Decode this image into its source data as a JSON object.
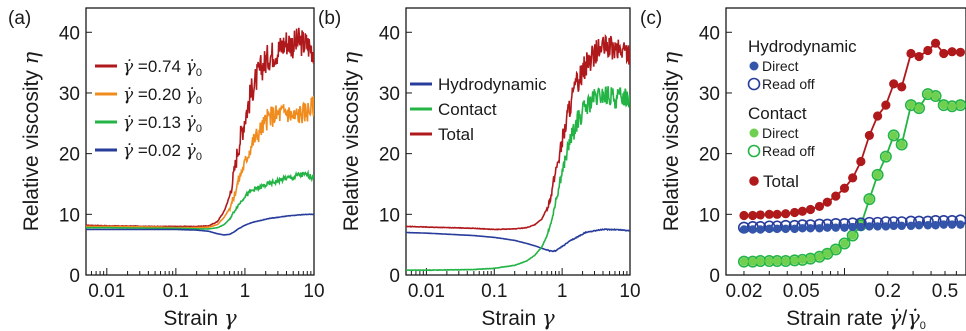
{
  "colors": {
    "red": "#b0191c",
    "orange": "#f08c1e",
    "green": "#23b445",
    "blue": "#283c9b",
    "light_green": "#6fd04f",
    "dot_blue": "#3355aa"
  },
  "chart_data": [
    {
      "type": "line",
      "panel_label": "(a)",
      "xlabel": "Strain γ",
      "ylabel": "Relative viscosity η",
      "x_scale": "log",
      "xlim": [
        0.005,
        10
      ],
      "ylim": [
        0,
        44
      ],
      "x_ticks": [
        0.01,
        0.1,
        1,
        10
      ],
      "x_tick_labels": [
        "0.01",
        "0.1",
        "1",
        "10"
      ],
      "y_ticks": [
        0,
        10,
        20,
        30,
        40
      ],
      "y_tick_labels": [
        "0",
        "10",
        "20",
        "30",
        "40"
      ],
      "legend_position": "top-left",
      "series": [
        {
          "name": "γ̇ =0.74 γ̇₀",
          "color": "#b0191c",
          "noise": 2.4,
          "x": [
            0.005,
            0.01,
            0.05,
            0.1,
            0.2,
            0.3,
            0.4,
            0.5,
            0.6,
            0.7,
            0.8,
            1.0,
            1.3,
            1.7,
            2.2,
            3,
            4,
            5,
            6,
            8,
            10
          ],
          "y": [
            8.2,
            8.1,
            8,
            8,
            8,
            8.1,
            8.8,
            10.5,
            13,
            17,
            21,
            26,
            31,
            34,
            36,
            37,
            38.5,
            38,
            38.5,
            38,
            37
          ]
        },
        {
          "name": "γ̇ =0.20 γ̇₀",
          "color": "#f08c1e",
          "noise": 1.8,
          "x": [
            0.005,
            0.01,
            0.05,
            0.1,
            0.2,
            0.3,
            0.4,
            0.5,
            0.6,
            0.7,
            0.8,
            1.0,
            1.3,
            1.7,
            2.2,
            3,
            4,
            5,
            6,
            8,
            10
          ],
          "y": [
            8,
            8,
            7.9,
            7.8,
            7.8,
            7.9,
            8.3,
            9.5,
            11,
            13,
            15.5,
            18.5,
            22,
            24,
            26,
            26.5,
            27,
            26,
            26.5,
            27,
            28
          ]
        },
        {
          "name": "γ̇ =0.13 γ̇₀",
          "color": "#23b445",
          "noise": 0.9,
          "x": [
            0.005,
            0.01,
            0.05,
            0.1,
            0.2,
            0.3,
            0.4,
            0.5,
            0.6,
            0.7,
            0.8,
            1.0,
            1.3,
            1.7,
            2.2,
            3,
            4,
            5,
            6,
            8,
            10
          ],
          "y": [
            7.8,
            7.8,
            7.7,
            7.7,
            7.6,
            7.6,
            7.8,
            8.3,
            9.2,
            10.5,
            11.5,
            13,
            14,
            14.5,
            15,
            15.5,
            16,
            16,
            16.5,
            16.5,
            16
          ]
        },
        {
          "name": "γ̇ =0.02 γ̇₀",
          "color": "#283c9b",
          "noise": 0.2,
          "x": [
            0.005,
            0.01,
            0.05,
            0.1,
            0.2,
            0.3,
            0.4,
            0.5,
            0.6,
            0.7,
            0.8,
            1.0,
            1.3,
            1.7,
            2.2,
            3,
            4,
            5,
            6,
            8,
            10
          ],
          "y": [
            7.5,
            7.5,
            7.5,
            7.5,
            7.4,
            7.2,
            6.8,
            6.6,
            6.7,
            7.1,
            7.6,
            8.2,
            8.7,
            9,
            9.3,
            9.5,
            9.7,
            9.8,
            9.9,
            10,
            10
          ]
        }
      ]
    },
    {
      "type": "line",
      "panel_label": "(b)",
      "xlabel": "Strain γ",
      "ylabel": "Relative viscosity η",
      "x_scale": "log",
      "xlim": [
        0.005,
        10
      ],
      "ylim": [
        0,
        44
      ],
      "x_ticks": [
        0.01,
        0.1,
        1,
        10
      ],
      "x_tick_labels": [
        "0.01",
        "0.1",
        "1",
        "10"
      ],
      "y_ticks": [
        0,
        10,
        20,
        30,
        40
      ],
      "y_tick_labels": [
        "0",
        "10",
        "20",
        "30",
        "40"
      ],
      "legend_position": "top-left",
      "series": [
        {
          "name": "Hydrodynamic",
          "color": "#283c9b",
          "noise": 0.6,
          "x": [
            0.005,
            0.01,
            0.05,
            0.1,
            0.2,
            0.3,
            0.4,
            0.5,
            0.6,
            0.7,
            0.8,
            1.0,
            1.3,
            1.7,
            2.2,
            3,
            4,
            5,
            6,
            8,
            10
          ],
          "y": [
            7,
            6.9,
            6.5,
            6.2,
            5.7,
            5.2,
            4.8,
            4.4,
            4.1,
            3.9,
            4,
            4.7,
            5.6,
            6.3,
            7,
            7.3,
            7.5,
            7.5,
            7.5,
            7.4,
            7.3
          ]
        },
        {
          "name": "Contact",
          "color": "#23b445",
          "noise": 1.7,
          "x": [
            0.005,
            0.01,
            0.05,
            0.1,
            0.2,
            0.3,
            0.4,
            0.5,
            0.6,
            0.7,
            0.8,
            1.0,
            1.3,
            1.7,
            2.2,
            3,
            4,
            5,
            6,
            8,
            10
          ],
          "y": [
            0.8,
            0.8,
            0.9,
            1.1,
            1.6,
            2.3,
            3.3,
            4.6,
            6.5,
            9,
            12,
            17,
            22,
            25.5,
            27.5,
            29,
            29.5,
            29.5,
            29,
            29.5,
            29
          ]
        },
        {
          "name": "Total",
          "color": "#b0191c",
          "noise": 2.0,
          "x": [
            0.005,
            0.01,
            0.05,
            0.1,
            0.2,
            0.3,
            0.4,
            0.5,
            0.6,
            0.7,
            0.8,
            1.0,
            1.3,
            1.7,
            2.2,
            3,
            4,
            5,
            6,
            8,
            10
          ],
          "y": [
            8,
            7.9,
            7.7,
            7.5,
            7.6,
            7.8,
            8.3,
            9.2,
            11,
            13.5,
            17,
            22,
            28,
            32,
            34.5,
            36.5,
            37.5,
            37.5,
            37,
            37,
            36.5
          ]
        }
      ]
    },
    {
      "type": "scatter",
      "panel_label": "(c)",
      "xlabel": "Strain rate γ̇/γ̇₀",
      "ylabel": "Relative viscosity η",
      "x_scale": "log",
      "xlim": [
        0.015,
        0.7
      ],
      "ylim": [
        0,
        44
      ],
      "x_ticks": [
        0.02,
        0.05,
        0.2,
        0.5
      ],
      "x_tick_labels": [
        "0.02",
        "0.05",
        "0.2",
        "0.5"
      ],
      "y_ticks": [
        0,
        10,
        20,
        30,
        40
      ],
      "y_tick_labels": [
        "0",
        "10",
        "20",
        "30",
        "40"
      ],
      "legend_position": "top-left",
      "legend": {
        "hydro_title": "Hydrodynamic",
        "contact_title": "Contact",
        "direct": "Direct",
        "read_off": "Read off",
        "total": "Total"
      },
      "x": [
        0.02,
        0.023,
        0.026,
        0.03,
        0.034,
        0.039,
        0.045,
        0.051,
        0.058,
        0.067,
        0.076,
        0.087,
        0.1,
        0.114,
        0.13,
        0.149,
        0.17,
        0.194,
        0.22,
        0.25,
        0.29,
        0.33,
        0.38,
        0.43,
        0.49,
        0.56,
        0.64
      ],
      "series": [
        {
          "name": "Total",
          "color": "#b0191c",
          "style": "filled-line",
          "y": [
            9.8,
            9.8,
            9.9,
            10,
            10,
            10.1,
            10.3,
            10.5,
            10.8,
            11.3,
            12,
            13,
            14.3,
            16,
            18.7,
            23,
            26.2,
            28,
            31.5,
            31,
            36.5,
            36,
            37,
            38.2,
            36.5,
            36.8,
            36.7
          ]
        },
        {
          "name": "Contact Read off",
          "color": "#23b445",
          "style": "open-line",
          "y": [
            2.2,
            2.2,
            2.3,
            2.3,
            2.3,
            2.3,
            2.4,
            2.5,
            2.7,
            3,
            3.5,
            4.2,
            5.2,
            6.5,
            8.2,
            12.5,
            16.5,
            19.5,
            23,
            21.5,
            28,
            27.5,
            29.8,
            29.5,
            28,
            27.8,
            28
          ]
        },
        {
          "name": "Contact Direct",
          "color": "#6fd04f",
          "style": "filled",
          "y": [
            2.2,
            2.2,
            2.3,
            2.3,
            2.3,
            2.3,
            2.4,
            2.5,
            2.7,
            3,
            3.5,
            4.2,
            5.2,
            6.5,
            8.2,
            12.5,
            16.5,
            19.5,
            23,
            21.5,
            28,
            27.5,
            29.8,
            29.5,
            28,
            27.8,
            28
          ]
        },
        {
          "name": "Hydrodynamic Read off",
          "color": "#283c9b",
          "style": "open",
          "y": [
            7.8,
            7.9,
            7.9,
            8,
            8,
            8.1,
            8.1,
            8.2,
            8.2,
            8.3,
            8.3,
            8.4,
            8.4,
            8.5,
            8.5,
            8.6,
            8.6,
            8.7,
            8.7,
            8.7,
            8.8,
            8.8,
            8.8,
            8.9,
            8.9,
            8.9,
            9
          ]
        },
        {
          "name": "Hydrodynamic Direct",
          "color": "#3355aa",
          "style": "filled",
          "y": [
            7.5,
            7.5,
            7.5,
            7.6,
            7.6,
            7.6,
            7.6,
            7.7,
            7.7,
            7.7,
            7.8,
            7.8,
            7.8,
            7.9,
            7.9,
            8,
            8,
            8,
            8.1,
            8.1,
            8.1,
            8.2,
            8.2,
            8.2,
            8.3,
            8.3,
            8.3
          ]
        }
      ]
    }
  ]
}
